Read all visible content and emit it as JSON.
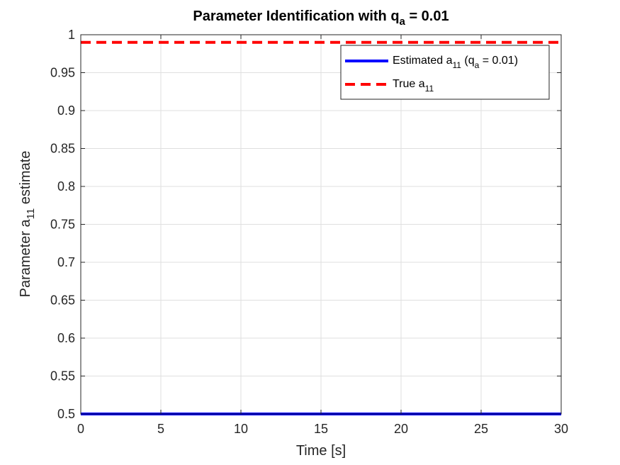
{
  "chart_data": {
    "type": "line",
    "title": {
      "prefix": "Parameter Identification with q",
      "subscript": "a",
      "suffix": " = 0.01"
    },
    "xlabel": "Time [s]",
    "ylabel": {
      "prefix": "Parameter a",
      "subscript": "11",
      "suffix": " estimate"
    },
    "xlim": [
      0,
      30
    ],
    "ylim": [
      0.5,
      1
    ],
    "xticks": [
      0,
      5,
      10,
      15,
      20,
      25,
      30
    ],
    "xtick_labels": [
      "0",
      "5",
      "10",
      "15",
      "20",
      "25",
      "30"
    ],
    "yticks": [
      0.5,
      0.55,
      0.6,
      0.65,
      0.7,
      0.75,
      0.8,
      0.85,
      0.9,
      0.95,
      1
    ],
    "ytick_labels": [
      "0.5",
      "0.55",
      "0.6",
      "0.65",
      "0.7",
      "0.75",
      "0.8",
      "0.85",
      "0.9",
      "0.95",
      "1"
    ],
    "grid": true,
    "legend_position": "top-right",
    "series": [
      {
        "legend": {
          "prefix": "Estimated a",
          "subscript": "11",
          "middle": " (q",
          "subscript2": "a",
          "suffix": " = 0.01)"
        },
        "color": "#0000ff",
        "style": "solid",
        "x": [
          0,
          30
        ],
        "y": [
          0.5,
          0.5
        ]
      },
      {
        "legend": {
          "prefix": "True a",
          "subscript": "11",
          "middle": "",
          "subscript2": "",
          "suffix": ""
        },
        "color": "#ff0000",
        "style": "dashed",
        "x": [
          0,
          30
        ],
        "y": [
          0.99,
          0.99
        ]
      }
    ]
  }
}
